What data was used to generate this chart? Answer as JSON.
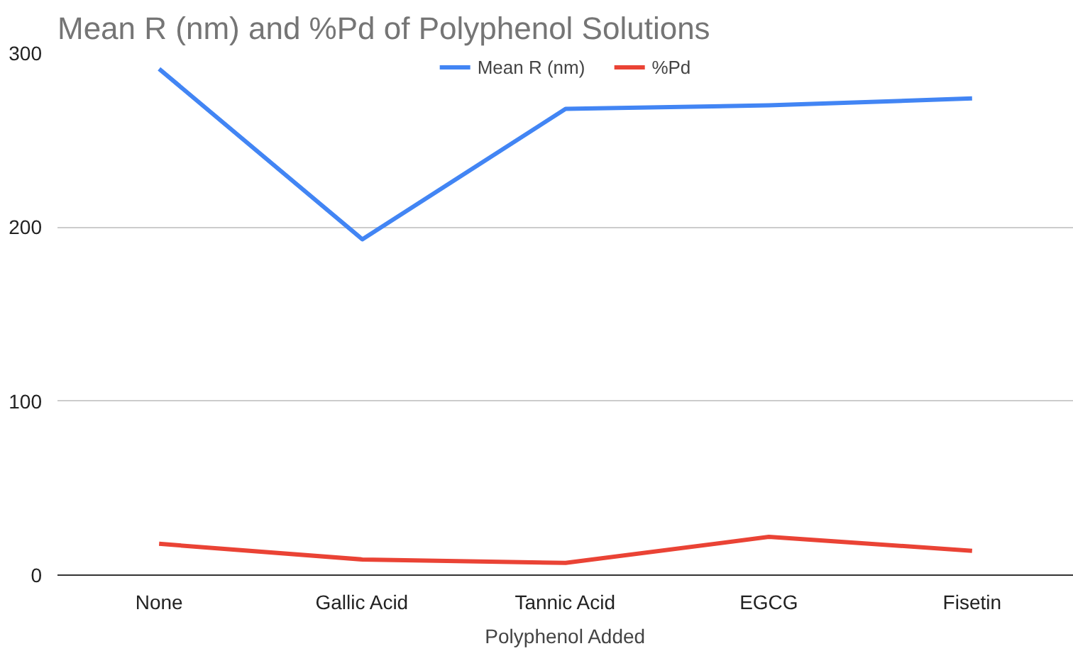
{
  "chart_data": {
    "type": "line",
    "title": "Mean R (nm) and %Pd of Polyphenol Solutions",
    "xlabel": "Polyphenol Added",
    "categories": [
      "None",
      "Gallic Acid",
      "Tannic Acid",
      "EGCG",
      "Fisetin"
    ],
    "series": [
      {
        "name": "Mean R (nm)",
        "color": "#4285f4",
        "values": [
          291,
          193,
          268,
          270,
          274
        ]
      },
      {
        "name": "%Pd",
        "color": "#ea4335",
        "values": [
          18,
          9,
          7,
          22,
          14
        ]
      }
    ],
    "ylim": [
      0,
      300
    ],
    "yticks": [
      0,
      100,
      200,
      300
    ],
    "grid": "y",
    "legend": "top",
    "marker": "none",
    "line_style": "solid"
  }
}
